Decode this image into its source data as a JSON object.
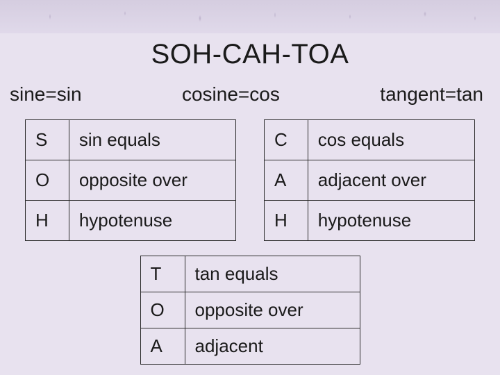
{
  "title": "SOH-CAH-TOA",
  "subheads": {
    "sine": "sine=sin",
    "cosine": "cosine=cos",
    "tangent": "tangent=tan"
  },
  "colors": {
    "background": "#e8e2ef",
    "text": "#1a1a1a",
    "border": "#2a2a2a",
    "top_texture_base": "#d5cde0"
  },
  "typography": {
    "family": "Verdana",
    "title_fontsize": 40,
    "subhead_fontsize": 28,
    "cell_fontsize": 26
  },
  "tables": {
    "soh": {
      "rows": [
        {
          "letter": "S",
          "desc": "sin equals"
        },
        {
          "letter": "O",
          "desc": "opposite over"
        },
        {
          "letter": "H",
          "desc": "hypotenuse"
        }
      ]
    },
    "cah": {
      "rows": [
        {
          "letter": "C",
          "desc": "cos equals"
        },
        {
          "letter": "A",
          "desc": "adjacent over"
        },
        {
          "letter": "H",
          "desc": "hypotenuse"
        }
      ]
    },
    "toa": {
      "rows": [
        {
          "letter": "T",
          "desc": "tan equals"
        },
        {
          "letter": "O",
          "desc": "opposite over"
        },
        {
          "letter": "A",
          "desc": "adjacent"
        }
      ]
    }
  }
}
